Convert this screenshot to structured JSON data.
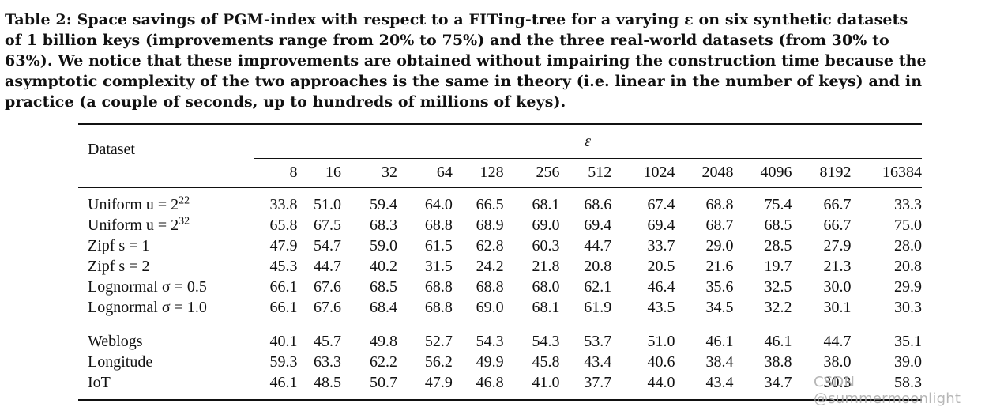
{
  "caption": {
    "line1": "Table 2: Space savings of PGM-index with respect to a FITing-tree for a varying ε on six synthetic datasets",
    "line2": "of 1 billion keys (improvements range from 20% to 75%) and the three real-world datasets (from 30% to",
    "line3": "63%). We notice that these improvements are obtained without impairing the construction time because the",
    "line4": "asymptotic complexity of the two approaches is the same in theory (i.e. linear in the number of keys) and in",
    "line5": "practice (a couple of seconds, up to hundreds of millions of keys)."
  },
  "table": {
    "dataset_header": "Dataset",
    "epsilon_header": "ε",
    "epsilon_values": [
      "8",
      "16",
      "32",
      "64",
      "128",
      "256",
      "512",
      "1024",
      "2048",
      "4096",
      "8192",
      "16384"
    ],
    "synthetic_rows": [
      {
        "label": "Uniform u = 2",
        "sup": "22",
        "values": [
          "33.8",
          "51.0",
          "59.4",
          "64.0",
          "66.5",
          "68.1",
          "68.6",
          "67.4",
          "68.8",
          "75.4",
          "66.7",
          "33.3"
        ]
      },
      {
        "label": "Uniform u = 2",
        "sup": "32",
        "values": [
          "65.8",
          "67.5",
          "68.3",
          "68.8",
          "68.9",
          "69.0",
          "69.4",
          "69.4",
          "68.7",
          "68.5",
          "66.7",
          "75.0"
        ]
      },
      {
        "label": "Zipf s = 1",
        "sup": "",
        "values": [
          "47.9",
          "54.7",
          "59.0",
          "61.5",
          "62.8",
          "60.3",
          "44.7",
          "33.7",
          "29.0",
          "28.5",
          "27.9",
          "28.0"
        ]
      },
      {
        "label": "Zipf s = 2",
        "sup": "",
        "values": [
          "45.3",
          "44.7",
          "40.2",
          "31.5",
          "24.2",
          "21.8",
          "20.8",
          "20.5",
          "21.6",
          "19.7",
          "21.3",
          "20.8"
        ]
      },
      {
        "label": "Lognormal σ = 0.5",
        "sup": "",
        "values": [
          "66.1",
          "67.6",
          "68.5",
          "68.8",
          "68.8",
          "68.0",
          "62.1",
          "46.4",
          "35.6",
          "32.5",
          "30.0",
          "29.9"
        ]
      },
      {
        "label": "Lognormal σ = 1.0",
        "sup": "",
        "values": [
          "66.1",
          "67.6",
          "68.4",
          "68.8",
          "69.0",
          "68.1",
          "61.9",
          "43.5",
          "34.5",
          "32.2",
          "30.1",
          "30.3"
        ]
      }
    ],
    "real_rows": [
      {
        "label": "Weblogs",
        "values": [
          "40.1",
          "45.7",
          "49.8",
          "52.7",
          "54.3",
          "54.3",
          "53.7",
          "51.0",
          "46.1",
          "46.1",
          "44.7",
          "35.1"
        ]
      },
      {
        "label": "Longitude",
        "values": [
          "59.3",
          "63.3",
          "62.2",
          "56.2",
          "49.9",
          "45.8",
          "43.4",
          "40.6",
          "38.4",
          "38.8",
          "38.0",
          "39.0"
        ]
      },
      {
        "label": "IoT",
        "values": [
          "46.1",
          "48.5",
          "50.7",
          "47.9",
          "46.8",
          "41.0",
          "37.7",
          "44.0",
          "43.4",
          "34.7",
          "30.3",
          "58.3"
        ]
      }
    ]
  },
  "watermark": "CSDN @summermoonlight"
}
